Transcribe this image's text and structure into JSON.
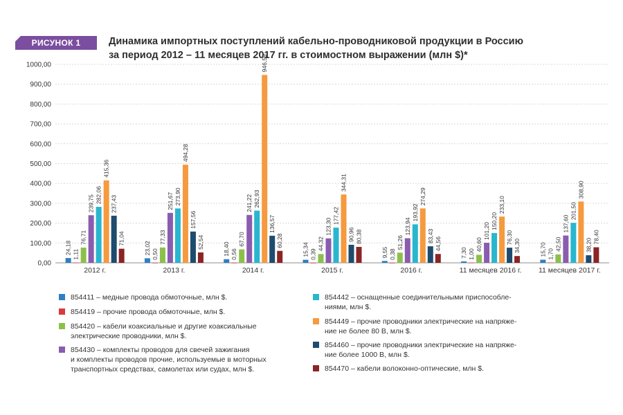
{
  "header": {
    "badge": "РИСУНОК 1",
    "title_line1": "Динамика импортных поступлений кабельно-проводниковой продукции в Россию",
    "title_line2": "за период 2012 – 11 месяцев 2017 гг. в стоимостном выражении (млн $)*"
  },
  "chart_data": {
    "type": "bar",
    "ylim": [
      0,
      1000
    ],
    "y_ticks": [
      "0,00",
      "100,00",
      "200,00",
      "300,00",
      "400,00",
      "500,00",
      "600,00",
      "700,00",
      "800,00",
      "900,00",
      "1000,00"
    ],
    "categories": [
      "2012 г.",
      "2013 г.",
      "2014 г.",
      "2015 г.",
      "2016 г.",
      "11 месяцев 2016 г.",
      "11 месяцев 2017 г."
    ],
    "grid": true,
    "series": [
      {
        "name": "854411 – медные провода обмоточные, млн $.",
        "color": "#2f7fc1",
        "values": [
          24.18,
          23.02,
          18.4,
          15.34,
          9.55,
          7.3,
          15.7
        ],
        "labels": [
          "24,18",
          "23,02",
          "18,40",
          "15,34",
          "9,55",
          "7,30",
          "15,70"
        ]
      },
      {
        "name": "854419 – прочие провода обмоточные, млн $.",
        "color": "#d93a3a",
        "values": [
          1.11,
          0.5,
          0.56,
          0.39,
          0.38,
          1.0,
          1.7
        ],
        "labels": [
          "1,11",
          "0,50",
          "0,56",
          "0,39",
          "0,38",
          "1,00",
          "1,70"
        ]
      },
      {
        "name": "854420 – кабели коаксиальные и другие коаксиальные\nэлектрические проводники, млн $.",
        "color": "#8cc04b",
        "values": [
          76.71,
          77.33,
          67.7,
          44.32,
          51.26,
          40.6,
          42.5
        ],
        "labels": [
          "76,71",
          "77,33",
          "67,70",
          "44,32",
          "51,26",
          "40,60",
          "42,50"
        ]
      },
      {
        "name": "854430 – комплекты проводов для свечей зажигания\nи комплекты проводов прочие, используемые в моторных\nтранспортных средствах, самолетах или судах, млн $.",
        "color": "#8a5cb0",
        "values": [
          239.75,
          251.67,
          241.22,
          123.3,
          123.94,
          101.2,
          137.6
        ],
        "labels": [
          "239,75",
          "251,67",
          "241,22",
          "123,30",
          "123,94",
          "101,20",
          "137,60"
        ]
      },
      {
        "name": "854442 – оснащенные соединительными приспособле-\nниями, млн $.",
        "color": "#29b6cf",
        "values": [
          282.06,
          273.9,
          262.93,
          177.42,
          193.92,
          150.2,
          201.5
        ],
        "labels": [
          "282,06",
          "273,90",
          "262,93",
          "177,42",
          "193,92",
          "150,20",
          "201,50"
        ]
      },
      {
        "name": "854449 – прочие проводники электрические на напряже-\nние не более 80 В, млн $.",
        "color": "#f59a3e",
        "values": [
          415.36,
          494.28,
          946.59,
          344.31,
          274.29,
          233.1,
          308.9
        ],
        "labels": [
          "415,36",
          "494,28",
          "946,59",
          "344,31",
          "274,29",
          "233,10",
          "308,90"
        ]
      },
      {
        "name": "854460 – прочие проводники электрические на напряже-\nние более 1000 В, млн $.",
        "color": "#1e4b6e",
        "values": [
          237.43,
          157.56,
          136.57,
          90.96,
          83.43,
          76.3,
          38.2
        ],
        "labels": [
          "237,43",
          "157,56",
          "136,57",
          "90,96",
          "83,43",
          "76,30",
          "38,20"
        ]
      },
      {
        "name": "854470 – кабели волоконно-оптические, млн $.",
        "color": "#8b2424",
        "values": [
          71.04,
          52.54,
          60.28,
          80.38,
          44.56,
          34.3,
          78.4
        ],
        "labels": [
          "71,04",
          "52,54",
          "60,28",
          "80,38",
          "44,56",
          "34,30",
          "78,40"
        ]
      }
    ]
  }
}
